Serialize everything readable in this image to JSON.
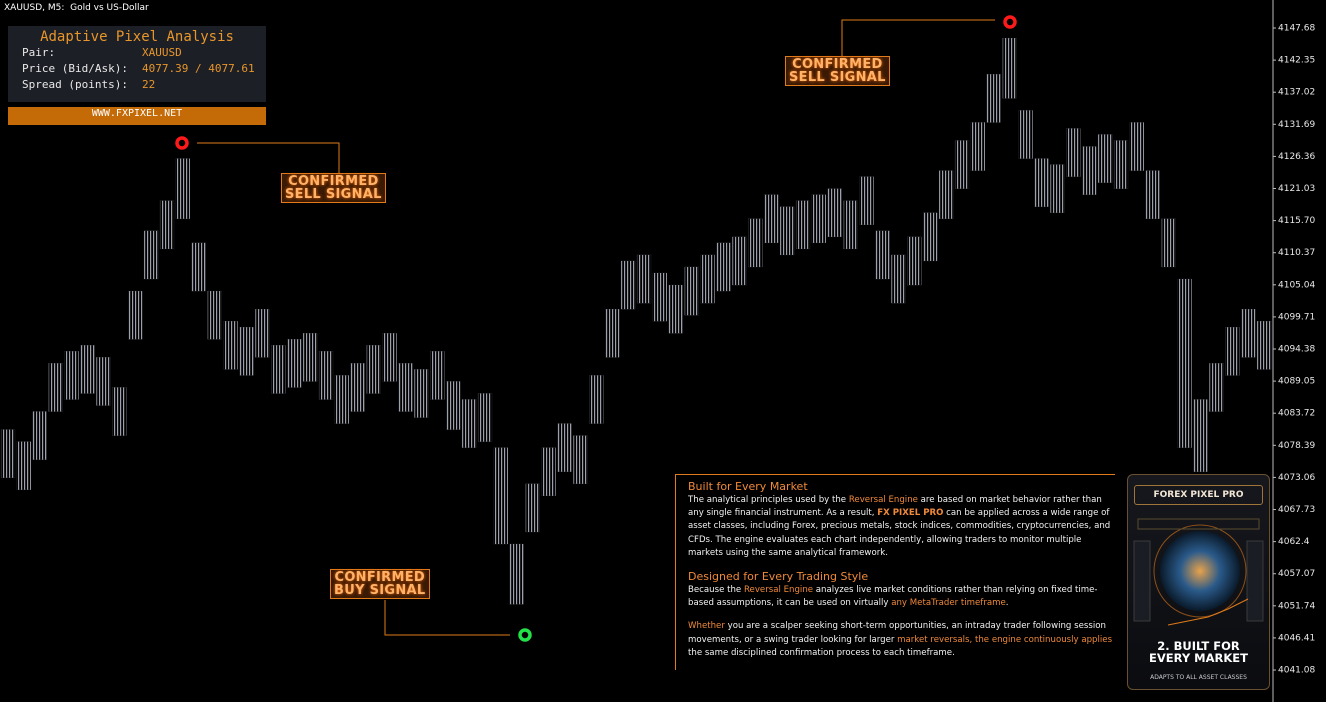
{
  "window": {
    "title": "XAUUSD, M5:  Gold vs US-Dollar"
  },
  "info_panel": {
    "title": "Adaptive Pixel Analysis",
    "rows": [
      [
        "Pair:",
        "XAUUSD"
      ],
      [
        "Price (Bid/Ask):",
        "4077.39 / 4077.61"
      ],
      [
        "Spread (points):",
        "22"
      ]
    ],
    "footer": "WWW.FXPIXEL.NET"
  },
  "chart_data": {
    "type": "range-bar",
    "color": "#8c909c",
    "high": [
      4081,
      4079,
      4084,
      4092,
      4094,
      4095,
      4093,
      4088,
      4104,
      4114,
      4119,
      4126,
      4112,
      4104,
      4099,
      4098,
      4101,
      4095,
      4096,
      4097,
      4094,
      4090,
      4092,
      4095,
      4097,
      4092,
      4091,
      4094,
      4089,
      4086,
      4087,
      4078,
      4062,
      4072,
      4078,
      4082,
      4080,
      4090,
      4101,
      4109,
      4110,
      4107,
      4105,
      4108,
      4110,
      4112,
      4113,
      4116,
      4120,
      4118,
      4119,
      4120,
      4121,
      4119,
      4123,
      4114,
      4110,
      4113,
      4117,
      4124,
      4129,
      4132,
      4140,
      4146,
      4134,
      4126,
      4125,
      4131,
      4128,
      4130,
      4129,
      4132,
      4124,
      4116,
      4106,
      4086,
      4092,
      4098,
      4101,
      4099
    ],
    "low": [
      4073,
      4071,
      4076,
      4084,
      4086,
      4087,
      4085,
      4080,
      4096,
      4106,
      4111,
      4116,
      4104,
      4096,
      4091,
      4090,
      4093,
      4087,
      4088,
      4089,
      4086,
      4082,
      4084,
      4087,
      4089,
      4084,
      4083,
      4086,
      4081,
      4078,
      4079,
      4062,
      4052,
      4064,
      4070,
      4074,
      4072,
      4082,
      4093,
      4101,
      4102,
      4099,
      4097,
      4100,
      4102,
      4104,
      4105,
      4108,
      4112,
      4110,
      4111,
      4112,
      4113,
      4111,
      4115,
      4106,
      4102,
      4105,
      4109,
      4116,
      4121,
      4124,
      4132,
      4136,
      4126,
      4118,
      4117,
      4123,
      4120,
      4122,
      4121,
      4124,
      4116,
      4108,
      4078,
      4074,
      4084,
      4090,
      4093,
      4091
    ],
    "ylim": [
      4035.77,
      4152.33
    ],
    "yticks": [
      4147.68,
      4142.35,
      4137.02,
      4131.69,
      4126.36,
      4121.03,
      {
        "value": 4115.7,
        "label": "4115.70"
      },
      4110.37,
      4105.04,
      4099.71,
      4094.38,
      4089.05,
      4083.72,
      4078.39,
      4073.06,
      4067.73,
      4062.4,
      4057.07,
      4051.74,
      4046.41,
      4041.08
    ],
    "annotations": [
      {
        "text": [
          "CONFIRMED",
          "SELL SIGNAL"
        ]
      },
      {
        "text": [
          "CONFIRMED",
          "SELL SIGNAL"
        ]
      },
      {
        "text": [
          "CONFIRMED",
          "BUY SIGNAL"
        ]
      }
    ]
  },
  "text_panel": {
    "sections": [
      {
        "heading": "Built for Every Market",
        "body": [
          {
            "text": "The analytical principles used by the "
          },
          {
            "text": "Reversal Engine",
            "accent": true
          },
          {
            "text": " are based on market behavior rather than any single financial instrument. As a result, "
          },
          {
            "text": "FX PIXEL PRO",
            "accent": true,
            "bold": true
          },
          {
            "text": " can be applied across a wide range of asset classes, including Forex, precious metals, stock indices, commodities, cryptocurrencies, and CFDs. The engine evaluates each chart independently, allowing traders to monitor multiple markets using the same analytical framework."
          }
        ]
      },
      {
        "heading": "Designed for Every Trading Style",
        "body": [
          {
            "text": "Because the "
          },
          {
            "text": "Reversal Engine",
            "accent": true
          },
          {
            "text": " analyzes live market conditions rather than relying on fixed time-based assumptions, it can be used on virtually "
          },
          {
            "text": "any MetaTrader timeframe",
            "accent": true
          },
          {
            "text": "."
          }
        ]
      },
      {
        "body": [
          {
            "text": "Whether",
            "accent": true
          },
          {
            "text": " you are a scalper seeking short-term opportunities, an intraday trader following session movements, or a swing trader looking for larger "
          },
          {
            "text": "market reversals,",
            "accent": true
          },
          {
            "text": " "
          },
          {
            "text": "the engine continuously applies",
            "accent": true
          },
          {
            "text": " the same disciplined confirmation process to each timeframe."
          }
        ]
      }
    ]
  },
  "promo_card": {
    "brand": "FOREX PIXEL PRO",
    "headline": [
      "2. BUILT FOR",
      "EVERY MARKET"
    ],
    "tagline": "ADAPTS TO ALL ASSET CLASSES"
  }
}
